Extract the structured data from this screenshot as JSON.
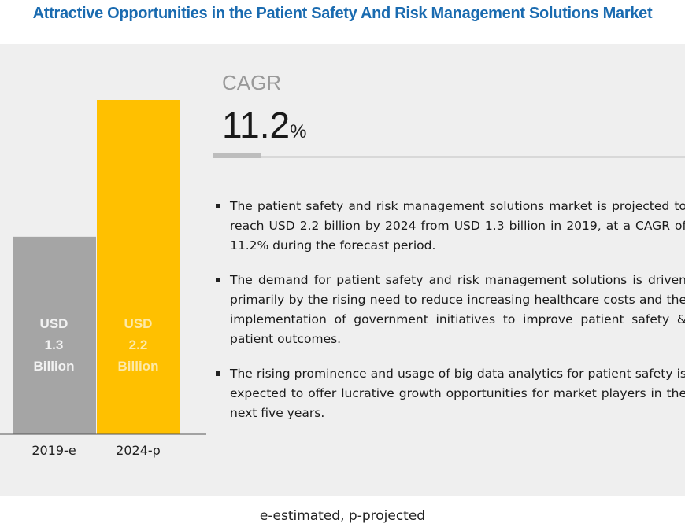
{
  "title": "Attractive Opportunities in the Patient Safety And Risk Management Solutions Market",
  "cagr": {
    "label": "CAGR",
    "value": "11.2",
    "unit": "%"
  },
  "bullets": [
    "The patient safety and risk management solutions market is projected to reach USD 2.2 billion by 2024 from USD 1.3 billion in 2019, at a CAGR of 11.2% during the forecast period.",
    "The demand for patient safety and risk management solutions is driven primarily by the rising need to reduce increasing healthcare costs and the implementation of government initiatives to improve patient safety & patient outcomes.",
    "The rising prominence and usage of big data analytics for patient safety is expected to offer lucrative growth opportunities for market players in the next five years."
  ],
  "footer": "e-estimated, p-projected",
  "chart_data": {
    "type": "bar",
    "categories": [
      "2019-e",
      "2024-p"
    ],
    "values": [
      1.3,
      2.2
    ],
    "unit": "USD Billion",
    "data_labels": [
      [
        "USD",
        "1.3",
        "Billion"
      ],
      [
        "USD",
        "2.2",
        "Billion"
      ]
    ],
    "colors": [
      "#a5a5a5",
      "#ffc000"
    ],
    "label_colors": [
      "#f2f2f2",
      "#fde9a8"
    ],
    "grid": false
  }
}
